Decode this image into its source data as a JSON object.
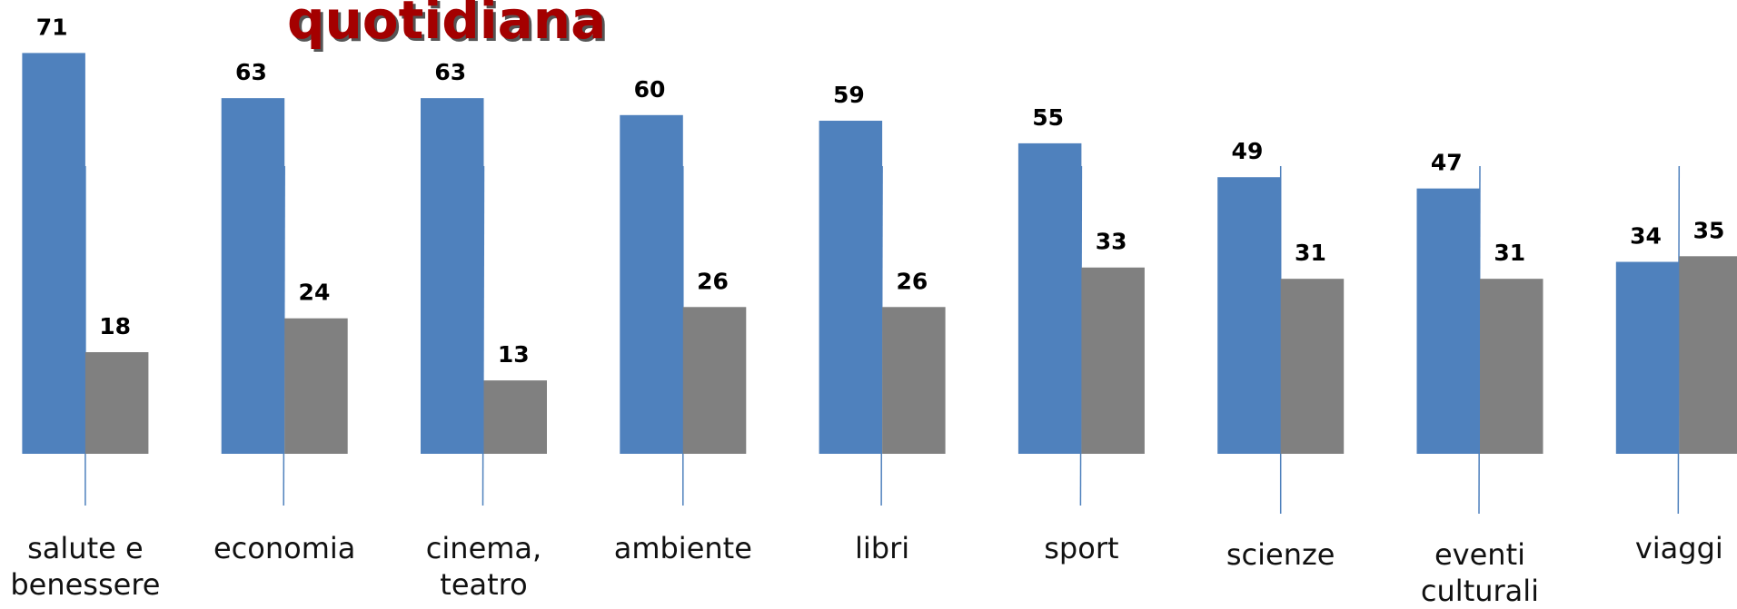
{
  "chart_data": {
    "type": "bar",
    "title": "quotidiana",
    "categories": [
      "salute e benessere",
      "economia",
      "cinema, teatro",
      "ambiente",
      "libri",
      "sport",
      "scienze",
      "eventi culturali",
      "viaggi"
    ],
    "series": [
      {
        "color": "#4f81bd",
        "values": [
          71,
          63,
          63,
          60,
          59,
          55,
          49,
          47,
          34
        ]
      },
      {
        "color": "#808080",
        "values": [
          18,
          24,
          13,
          26,
          26,
          33,
          31,
          31,
          35
        ]
      }
    ]
  }
}
